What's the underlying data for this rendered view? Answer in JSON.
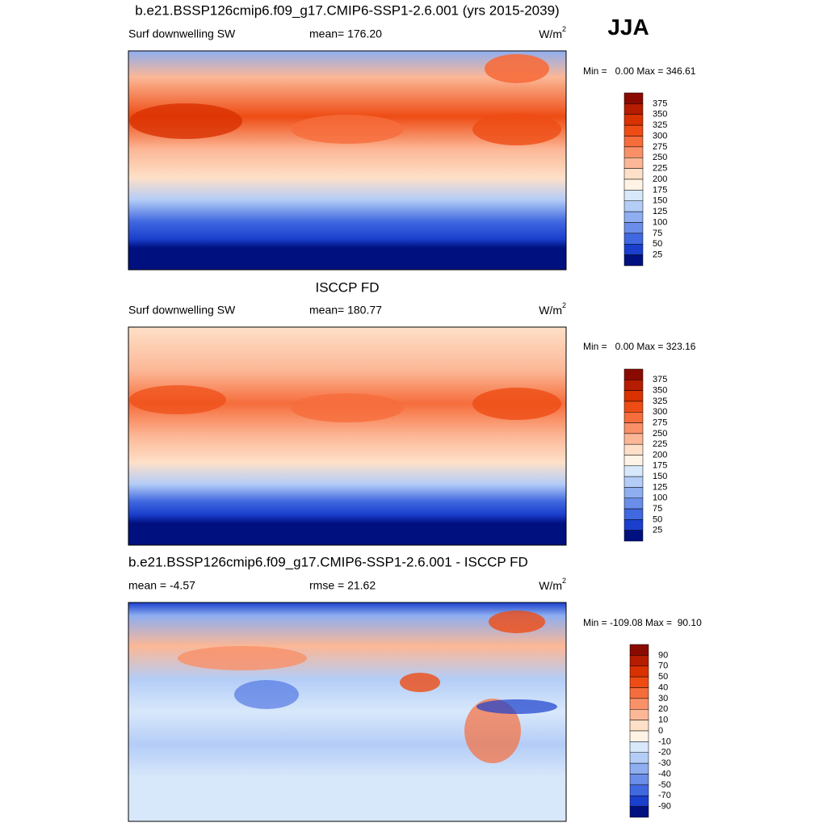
{
  "header": {
    "season": "JJA"
  },
  "panels": [
    {
      "title": "b.e21.BSSP126cmip6.f09_g17.CMIP6-SSP1-2.6.001 (yrs 2015-2039)",
      "left_label": "Surf downwelling SW",
      "center_label": "mean= 176.20",
      "units": {
        "base": "W/m",
        "sup": "2"
      },
      "range_text": "Min =   0.00 Max = 346.61",
      "colorbar": {
        "labels": [
          "375",
          "350",
          "325",
          "300",
          "275",
          "250",
          "225",
          "200",
          "175",
          "150",
          "125",
          "100",
          "75",
          "50",
          "25"
        ],
        "colors": [
          "#8b0a00",
          "#b51c00",
          "#d93100",
          "#ee4c14",
          "#f66d3c",
          "#f99068",
          "#fcb796",
          "#fee0c8",
          "#fff3e6",
          "#d8e8fb",
          "#b4cdf7",
          "#8eaef0",
          "#6a8ee9",
          "#4068e0",
          "#1a3fcc",
          "#00107f"
        ]
      }
    },
    {
      "title": "ISCCP FD",
      "left_label": "Surf downwelling SW",
      "center_label": "mean= 180.77",
      "units": {
        "base": "W/m",
        "sup": "2"
      },
      "range_text": "Min =   0.00 Max = 323.16",
      "colorbar": {
        "labels": [
          "375",
          "350",
          "325",
          "300",
          "275",
          "250",
          "225",
          "200",
          "175",
          "150",
          "125",
          "100",
          "75",
          "50",
          "25"
        ],
        "colors": [
          "#8b0a00",
          "#b51c00",
          "#d93100",
          "#ee4c14",
          "#f66d3c",
          "#f99068",
          "#fcb796",
          "#fee0c8",
          "#fff3e6",
          "#d8e8fb",
          "#b4cdf7",
          "#8eaef0",
          "#6a8ee9",
          "#4068e0",
          "#1a3fcc",
          "#00107f"
        ]
      }
    },
    {
      "title": "b.e21.BSSP126cmip6.f09_g17.CMIP6-SSP1-2.6.001 - ISCCP FD",
      "left_label": "mean =  -4.57",
      "center_label": "rmse =  21.62",
      "units": {
        "base": "W/m",
        "sup": "2"
      },
      "range_text": "Min = -109.08 Max =  90.10",
      "colorbar": {
        "labels": [
          "90",
          "70",
          "50",
          "40",
          "30",
          "20",
          "10",
          "0",
          "-10",
          "-20",
          "-30",
          "-40",
          "-50",
          "-70",
          "-90"
        ],
        "colors": [
          "#8b0a00",
          "#b51c00",
          "#d93100",
          "#ee4c14",
          "#f66d3c",
          "#f99068",
          "#fcb796",
          "#fee0c8",
          "#fff3e6",
          "#d8e8fb",
          "#b4cdf7",
          "#8eaef0",
          "#6a8ee9",
          "#4068e0",
          "#1a3fcc",
          "#00107f"
        ]
      }
    }
  ]
}
